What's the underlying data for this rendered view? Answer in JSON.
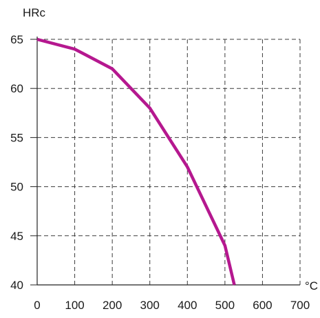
{
  "chart_data": {
    "type": "line",
    "title": "",
    "xlabel": "°C",
    "ylabel": "HRc",
    "xlim": [
      0,
      700
    ],
    "ylim": [
      40,
      65
    ],
    "x_ticks": [
      "0",
      "100",
      "200",
      "300",
      "400",
      "500",
      "600",
      "700"
    ],
    "y_ticks": [
      "40",
      "45",
      "50",
      "55",
      "60",
      "65"
    ],
    "grid": true,
    "grid_style": "dashed",
    "series": [
      {
        "color": "#b5188f",
        "x": [
          0,
          100,
          200,
          300,
          400,
          500,
          525
        ],
        "y": [
          65,
          64,
          62,
          58,
          52,
          44,
          40
        ]
      }
    ]
  }
}
